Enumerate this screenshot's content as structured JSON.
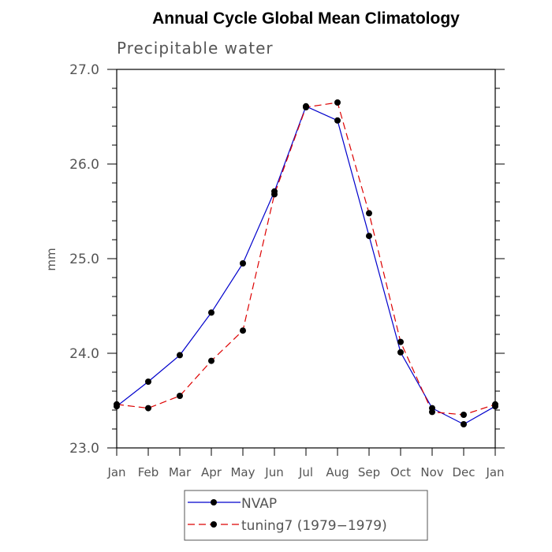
{
  "chart_data": {
    "type": "line",
    "title": "Annual Cycle Global Mean Climatology",
    "subtitle": "Precipitable water",
    "xlabel": "",
    "ylabel": "mm",
    "categories": [
      "Jan",
      "Feb",
      "Mar",
      "Apr",
      "May",
      "Jun",
      "Jul",
      "Aug",
      "Sep",
      "Oct",
      "Nov",
      "Dec",
      "Jan"
    ],
    "ylim": [
      23.0,
      27.0
    ],
    "yticks": [
      "23.0",
      "24.0",
      "25.0",
      "26.0",
      "27.0"
    ],
    "grid": false,
    "legend_position": "bottom-center",
    "series": [
      {
        "name": "NVAP",
        "color": "#0000cc",
        "line_style": "solid",
        "values": [
          23.44,
          23.7,
          23.98,
          24.43,
          24.95,
          25.71,
          26.61,
          26.46,
          25.24,
          24.01,
          23.42,
          23.25,
          23.44
        ]
      },
      {
        "name": "tuning7 (1979−1979)",
        "color": "#dd0000",
        "line_style": "dashed",
        "values": [
          23.46,
          23.42,
          23.55,
          23.92,
          24.24,
          25.68,
          26.6,
          26.65,
          25.48,
          24.12,
          23.38,
          23.35,
          23.46
        ]
      }
    ]
  }
}
